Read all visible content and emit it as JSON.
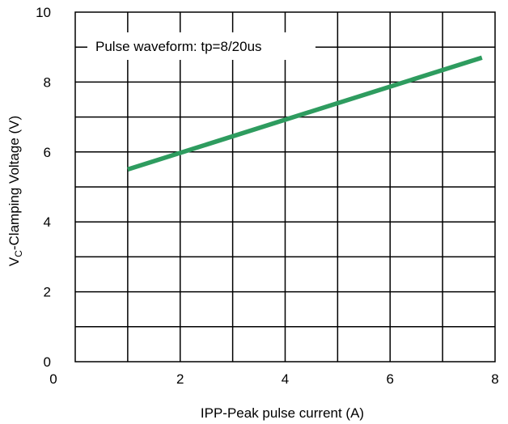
{
  "chart_data": {
    "type": "line",
    "title": "",
    "annotation": "Pulse waveform: tp=8/20us",
    "xlabel": "IPP-Peak pulse current (A)",
    "ylabel_main": "V",
    "ylabel_sub": "C",
    "ylabel_rest": "-Clamping Voltage (V)",
    "xlim": [
      0,
      8
    ],
    "ylim": [
      0,
      10
    ],
    "x_ticks": [
      0,
      2,
      4,
      6,
      8
    ],
    "y_ticks": [
      0,
      2,
      4,
      6,
      8,
      10
    ],
    "grid": true,
    "series": [
      {
        "color": "#2e9c5f",
        "x": [
          1,
          7.75
        ],
        "y": [
          5.5,
          8.7
        ]
      }
    ]
  }
}
